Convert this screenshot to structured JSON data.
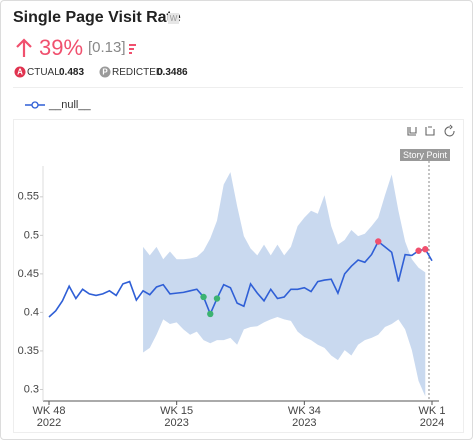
{
  "header": {
    "badge": "W",
    "change": "39%",
    "change_abs": "[0.13]",
    "actual_label": "CTUAL",
    "actual": "0.483",
    "predicted_label": "REDICTED",
    "predicted": "0.3486",
    "story_point": "Story Point"
  },
  "chart_data": {
    "type": "line",
    "title": "Single Page Visit Rate",
    "categories": [
      "WK 48 2022",
      null,
      null,
      null,
      null,
      null,
      null,
      null,
      null,
      null,
      null,
      null,
      null,
      null,
      null,
      null,
      null,
      null,
      null,
      "WK 15 2023",
      null,
      null,
      null,
      null,
      null,
      null,
      null,
      null,
      null,
      null,
      null,
      null,
      null,
      null,
      null,
      null,
      null,
      null,
      "WK 34 2023",
      null,
      null,
      null,
      null,
      null,
      null,
      null,
      null,
      null,
      null,
      null,
      null,
      null,
      null,
      null,
      null,
      null,
      null,
      "WK 1 2024"
    ],
    "series": [
      {
        "name": "__null__",
        "color": "#2f5fd6",
        "values": [
          0.394,
          0.402,
          0.415,
          0.434,
          0.418,
          0.43,
          0.424,
          0.422,
          0.424,
          0.428,
          0.422,
          0.437,
          0.44,
          0.416,
          0.428,
          0.423,
          0.433,
          0.436,
          0.424,
          0.425,
          0.426,
          0.428,
          0.43,
          0.42,
          0.398,
          0.418,
          0.436,
          0.432,
          0.412,
          0.408,
          0.437,
          0.425,
          0.415,
          0.43,
          0.418,
          0.42,
          0.43,
          0.43,
          0.432,
          0.427,
          0.44,
          0.442,
          0.443,
          0.425,
          0.45,
          0.46,
          0.468,
          0.465,
          0.475,
          0.492,
          0.485,
          0.478,
          0.44,
          0.475,
          0.474,
          0.48,
          0.482,
          0.467
        ],
        "marker_colors": [
          null,
          null,
          null,
          null,
          null,
          null,
          null,
          null,
          null,
          null,
          null,
          null,
          null,
          null,
          null,
          null,
          null,
          null,
          null,
          null,
          null,
          null,
          null,
          "#3cb371",
          "#3cb371",
          "#3cb371",
          null,
          null,
          null,
          null,
          null,
          null,
          null,
          null,
          null,
          null,
          null,
          null,
          null,
          null,
          null,
          null,
          null,
          null,
          null,
          null,
          null,
          null,
          null,
          "#f0506e",
          null,
          null,
          null,
          null,
          null,
          "#f0506e",
          "#f0506e",
          null
        ]
      }
    ],
    "band": {
      "color": "#c9d9ef",
      "upper": [
        null,
        null,
        null,
        null,
        null,
        null,
        null,
        null,
        null,
        null,
        null,
        null,
        null,
        null,
        0.485,
        0.474,
        0.485,
        0.469,
        0.479,
        0.469,
        0.469,
        0.47,
        0.472,
        0.48,
        0.496,
        0.519,
        0.566,
        0.582,
        0.538,
        0.499,
        0.483,
        0.474,
        0.488,
        0.474,
        0.488,
        0.474,
        0.485,
        0.512,
        0.523,
        0.532,
        0.528,
        0.552,
        0.512,
        0.488,
        0.494,
        0.507,
        0.499,
        0.502,
        0.512,
        0.523,
        0.552,
        0.579,
        0.532,
        0.492,
        0.469,
        0.458,
        0.452,
        null
      ],
      "lower": [
        null,
        null,
        null,
        null,
        null,
        null,
        null,
        null,
        null,
        null,
        null,
        null,
        null,
        null,
        0.348,
        0.354,
        0.371,
        0.391,
        0.385,
        0.387,
        0.378,
        0.371,
        0.375,
        0.364,
        0.36,
        0.364,
        0.364,
        0.367,
        0.358,
        0.378,
        0.381,
        0.382,
        0.387,
        0.391,
        0.394,
        0.391,
        0.389,
        0.375,
        0.368,
        0.364,
        0.358,
        0.354,
        0.344,
        0.338,
        0.351,
        0.344,
        0.358,
        0.364,
        0.367,
        0.371,
        0.381,
        0.385,
        0.391,
        0.378,
        0.351,
        0.311,
        0.291,
        null
      ]
    },
    "ylim": [
      0.285,
      0.59
    ],
    "yticks": [
      0.3,
      0.35,
      0.4,
      0.45,
      0.5,
      0.55
    ],
    "grid": false
  }
}
